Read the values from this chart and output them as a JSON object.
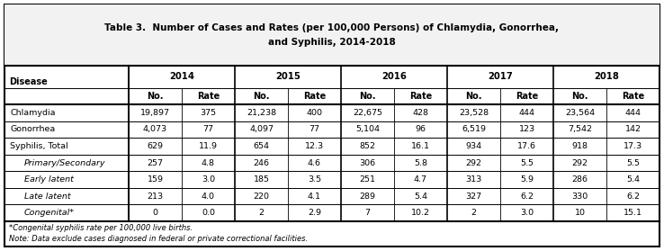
{
  "title_line1": "Table 3.  Number of Cases and Rates (per 100,000 Persons) of Chlamydia, Gonorrhea,",
  "title_line2": "and Syphilis, 2014-2018",
  "years": [
    "2014",
    "2015",
    "2016",
    "2017",
    "2018"
  ],
  "rows": [
    [
      "Chlamydia",
      false,
      "19,897",
      "375",
      "21,238",
      "400",
      "22,675",
      "428",
      "23,528",
      "444",
      "23,564",
      "444"
    ],
    [
      "Gonorrhea",
      false,
      "4,073",
      "77",
      "4,097",
      "77",
      "5,104",
      "96",
      "6,519",
      "123",
      "7,542",
      "142"
    ],
    [
      "Syphilis, Total",
      false,
      "629",
      "11.9",
      "654",
      "12.3",
      "852",
      "16.1",
      "934",
      "17.6",
      "918",
      "17.3"
    ],
    [
      "Primary/Secondary",
      true,
      "257",
      "4.8",
      "246",
      "4.6",
      "306",
      "5.8",
      "292",
      "5.5",
      "292",
      "5.5"
    ],
    [
      "Early latent",
      true,
      "159",
      "3.0",
      "185",
      "3.5",
      "251",
      "4.7",
      "313",
      "5.9",
      "286",
      "5.4"
    ],
    [
      "Late latent",
      true,
      "213",
      "4.0",
      "220",
      "4.1",
      "289",
      "5.4",
      "327",
      "6.2",
      "330",
      "6.2"
    ],
    [
      "Congenital*",
      true,
      "0",
      "0.0",
      "2",
      "2.9",
      "7",
      "10.2",
      "2",
      "3.0",
      "10",
      "15.1"
    ]
  ],
  "footnote1": "*Congenital syphilis rate per 100,000 live births.",
  "footnote2": "Note: Data exclude cases diagnosed in federal or private correctional facilities."
}
